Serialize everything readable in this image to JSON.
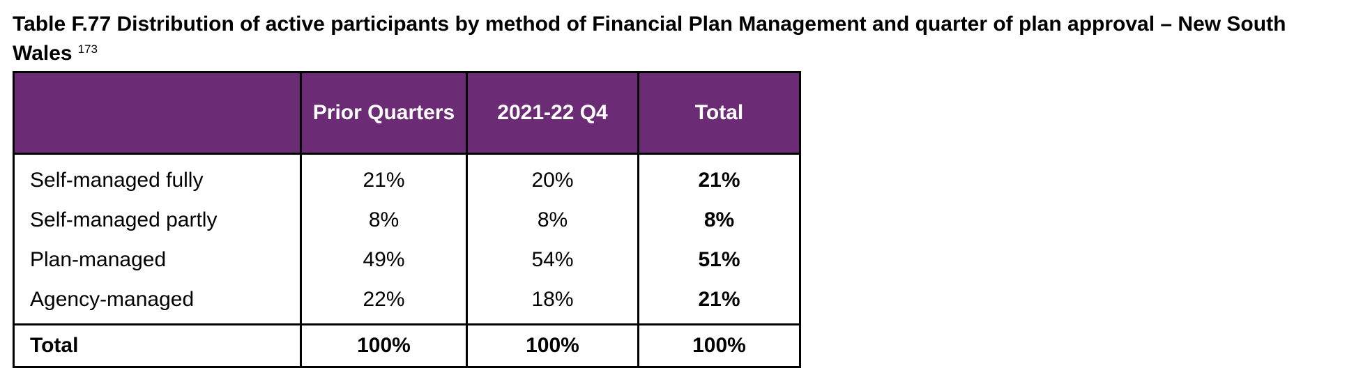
{
  "title": {
    "text": "Table F.77 Distribution of active participants by method of Financial Plan Management and quarter of plan approval – New South Wales",
    "footnote": "173"
  },
  "table": {
    "headers": [
      "",
      "Prior Quarters",
      "2021-22 Q4",
      "Total"
    ],
    "rows": [
      {
        "label": "Self-managed fully",
        "prior": "21%",
        "q4": "20%",
        "total": "21%"
      },
      {
        "label": "Self-managed partly",
        "prior": "8%",
        "q4": "8%",
        "total": "8%"
      },
      {
        "label": "Plan-managed",
        "prior": "49%",
        "q4": "54%",
        "total": "51%"
      },
      {
        "label": "Agency-managed",
        "prior": "22%",
        "q4": "18%",
        "total": "21%"
      }
    ],
    "total_row": {
      "label": "Total",
      "prior": "100%",
      "q4": "100%",
      "total": "100%"
    }
  },
  "colors": {
    "header_bg": "#6b2c75",
    "header_text": "#ffffff",
    "border": "#000000"
  }
}
